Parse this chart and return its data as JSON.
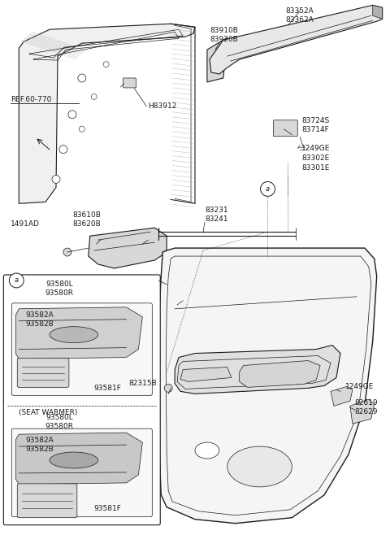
{
  "bg_color": "#ffffff",
  "line_color": "#1a1a1a",
  "labels": {
    "ref60770": "REF.60-770",
    "H83912": "H83912",
    "83910B": "83910B\n83920B",
    "83352A": "83352A\n83362A",
    "83724S": "83724S\n83714F",
    "1249GE_top": "1249GE",
    "83302E": "83302E\n83301E",
    "83231": "83231\n83241",
    "1491AD": "1491AD",
    "83610B": "83610B\n83620B",
    "93580L_1": "93580L\n93580R",
    "93582A_1": "93582A\n93582B",
    "93581F_1": "93581F",
    "SEAT_WARMER": "(SEAT WARMER)",
    "93580L_2": "93580L\n93580R",
    "93582A_2": "93582A\n93582B",
    "93581F_2": "93581F",
    "82315B": "82315B",
    "1249GE_bot": "1249GE",
    "82619": "82619\n82629"
  },
  "gray_light": "#d8d8d8",
  "gray_mid": "#b0b0b0",
  "gray_dark": "#888888",
  "hatch_color": "#aaaaaa"
}
